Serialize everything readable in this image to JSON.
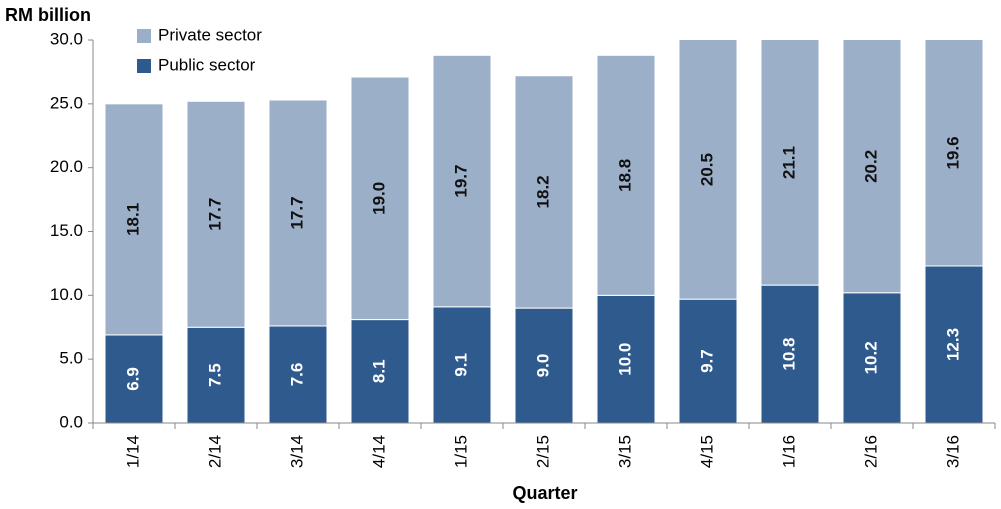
{
  "chart_data": {
    "type": "stacked_bar",
    "y_label": "RM billion",
    "x_label": "Quarter",
    "categories": [
      "1/14",
      "2/14",
      "3/14",
      "4/14",
      "1/15",
      "2/15",
      "3/15",
      "4/15",
      "1/16",
      "2/16",
      "3/16"
    ],
    "series": [
      {
        "name": "Public sector",
        "color": "#2f5a8e",
        "label_color": "#ffffff",
        "values": [
          6.9,
          7.5,
          7.6,
          8.1,
          9.1,
          9.0,
          10.0,
          9.7,
          10.8,
          10.2,
          12.3
        ],
        "value_labels": [
          "6.9",
          "7.5",
          "7.6",
          "8.1",
          "9.1",
          "9.0",
          "10.0",
          "9.7",
          "10.8",
          "10.2",
          "12.3"
        ]
      },
      {
        "name": "Private sector",
        "color": "#9bafc9",
        "label_color": "#111111",
        "values": [
          18.1,
          17.7,
          17.7,
          19.0,
          19.7,
          18.2,
          18.8,
          20.5,
          21.1,
          20.2,
          19.6
        ],
        "value_labels": [
          "18.1",
          "17.7",
          "17.7",
          "19.0",
          "19.7",
          "18.2",
          "18.8",
          "20.5",
          "21.1",
          "20.2",
          "19.6"
        ]
      }
    ],
    "ylim": [
      0,
      30
    ],
    "yticks": [
      {
        "value": 0,
        "label": "0.0"
      },
      {
        "value": 5,
        "label": "5.0"
      },
      {
        "value": 10,
        "label": "10.0"
      },
      {
        "value": 15,
        "label": "15.0"
      },
      {
        "value": 20,
        "label": "20.0"
      },
      {
        "value": 25,
        "label": "25.0"
      },
      {
        "value": 30,
        "label": "30.0"
      }
    ],
    "legend_position": "top-left"
  }
}
